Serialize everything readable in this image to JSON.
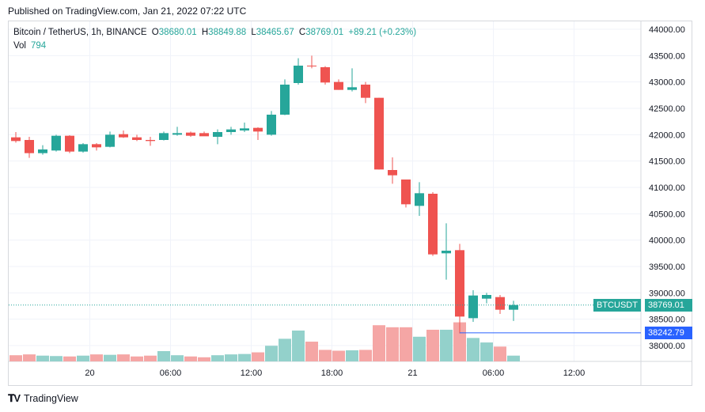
{
  "published": "Published on TradingView.com, Jan 21, 2022 07:22 UTC",
  "brand": "TradingView",
  "legend": {
    "symbol": "Bitcoin / TetherUS, 1h, BINANCE",
    "o_label": "O",
    "o": "38680.01",
    "h_label": "H",
    "h": "38849.88",
    "l_label": "L",
    "l": "38465.67",
    "c_label": "C",
    "c": "38769.01",
    "change": "+89.21 (+0.23%)",
    "vol_label": "Vol",
    "vol": "794"
  },
  "tags": {
    "symbol_name": "BTCUSDT",
    "last_price": "38769.01",
    "crosshair_price": "38242.79"
  },
  "colors": {
    "up": "#26a69a",
    "down": "#ef5350",
    "vol_up": "#93d1cb",
    "vol_down": "#f5a6a5",
    "crosshair": "#2962ff"
  },
  "chart_data": {
    "type": "candlestick",
    "y_axis": {
      "min": 37700,
      "max": 44100,
      "ticks": [
        "44000.00",
        "43500.00",
        "43000.00",
        "42500.00",
        "42000.00",
        "41500.00",
        "41000.00",
        "40500.00",
        "40000.00",
        "39500.00",
        "39000.00",
        "38500.00",
        "38000.00"
      ]
    },
    "x_axis": {
      "ticks": [
        {
          "label": "20",
          "index": 5.5
        },
        {
          "label": "06:00",
          "index": 11.5
        },
        {
          "label": "12:00",
          "index": 17.5
        },
        {
          "label": "18:00",
          "index": 23.5
        },
        {
          "label": "21",
          "index": 29.5
        },
        {
          "label": "06:00",
          "index": 35.5
        },
        {
          "label": "12:00",
          "index": 41.5
        }
      ]
    },
    "candles": [
      {
        "o": 41950,
        "h": 42050,
        "l": 41850,
        "c": 41880,
        "v": 0.15
      },
      {
        "o": 41900,
        "h": 41960,
        "l": 41560,
        "c": 41650,
        "v": 0.17
      },
      {
        "o": 41650,
        "h": 41800,
        "l": 41620,
        "c": 41720,
        "v": 0.14
      },
      {
        "o": 41700,
        "h": 42000,
        "l": 41680,
        "c": 41980,
        "v": 0.13
      },
      {
        "o": 41980,
        "h": 41990,
        "l": 41650,
        "c": 41680,
        "v": 0.12
      },
      {
        "o": 41680,
        "h": 41840,
        "l": 41660,
        "c": 41820,
        "v": 0.14
      },
      {
        "o": 41820,
        "h": 41840,
        "l": 41700,
        "c": 41760,
        "v": 0.17
      },
      {
        "o": 41770,
        "h": 42060,
        "l": 41760,
        "c": 42000,
        "v": 0.16
      },
      {
        "o": 42010,
        "h": 42080,
        "l": 41940,
        "c": 41950,
        "v": 0.17
      },
      {
        "o": 41950,
        "h": 42000,
        "l": 41880,
        "c": 41900,
        "v": 0.12
      },
      {
        "o": 41900,
        "h": 41960,
        "l": 41790,
        "c": 41880,
        "v": 0.14
      },
      {
        "o": 41900,
        "h": 42060,
        "l": 41890,
        "c": 42030,
        "v": 0.25
      },
      {
        "o": 42000,
        "h": 42150,
        "l": 41980,
        "c": 42030,
        "v": 0.15
      },
      {
        "o": 42040,
        "h": 42060,
        "l": 41960,
        "c": 41980,
        "v": 0.12
      },
      {
        "o": 42030,
        "h": 42060,
        "l": 41990,
        "c": 41970,
        "v": 0.1
      },
      {
        "o": 41960,
        "h": 42100,
        "l": 41820,
        "c": 42050,
        "v": 0.15
      },
      {
        "o": 42050,
        "h": 42150,
        "l": 42000,
        "c": 42100,
        "v": 0.17
      },
      {
        "o": 42080,
        "h": 42230,
        "l": 42050,
        "c": 42120,
        "v": 0.18
      },
      {
        "o": 42130,
        "h": 42140,
        "l": 41900,
        "c": 42060,
        "v": 0.22
      },
      {
        "o": 42000,
        "h": 42450,
        "l": 41980,
        "c": 42380,
        "v": 0.38
      },
      {
        "o": 42380,
        "h": 43050,
        "l": 42370,
        "c": 42950,
        "v": 0.55
      },
      {
        "o": 42980,
        "h": 43450,
        "l": 42950,
        "c": 43310,
        "v": 0.75
      },
      {
        "o": 43310,
        "h": 43500,
        "l": 43260,
        "c": 43300,
        "v": 0.48
      },
      {
        "o": 43280,
        "h": 43300,
        "l": 42950,
        "c": 42990,
        "v": 0.28
      },
      {
        "o": 43000,
        "h": 43050,
        "l": 42850,
        "c": 42850,
        "v": 0.26
      },
      {
        "o": 42850,
        "h": 43260,
        "l": 42820,
        "c": 42900,
        "v": 0.27
      },
      {
        "o": 42950,
        "h": 43000,
        "l": 42600,
        "c": 42700,
        "v": 0.28
      },
      {
        "o": 42700,
        "h": 42700,
        "l": 41340,
        "c": 41340,
        "v": 0.88
      },
      {
        "o": 41330,
        "h": 41570,
        "l": 41070,
        "c": 41230,
        "v": 0.83
      },
      {
        "o": 41150,
        "h": 41150,
        "l": 40620,
        "c": 40680,
        "v": 0.83
      },
      {
        "o": 40650,
        "h": 41100,
        "l": 40460,
        "c": 40890,
        "v": 0.6
      },
      {
        "o": 40880,
        "h": 40910,
        "l": 39700,
        "c": 39730,
        "v": 0.77
      },
      {
        "o": 39750,
        "h": 40320,
        "l": 39250,
        "c": 39800,
        "v": 0.77
      },
      {
        "o": 39810,
        "h": 39930,
        "l": 38230,
        "c": 38550,
        "v": 0.95
      },
      {
        "o": 38520,
        "h": 39050,
        "l": 38450,
        "c": 38950,
        "v": 0.57
      },
      {
        "o": 38890,
        "h": 39000,
        "l": 38800,
        "c": 38960,
        "v": 0.46
      },
      {
        "o": 38920,
        "h": 38960,
        "l": 38600,
        "c": 38680,
        "v": 0.36
      },
      {
        "o": 38680,
        "h": 38850,
        "l": 38466,
        "c": 38769,
        "v": 0.14
      }
    ]
  }
}
